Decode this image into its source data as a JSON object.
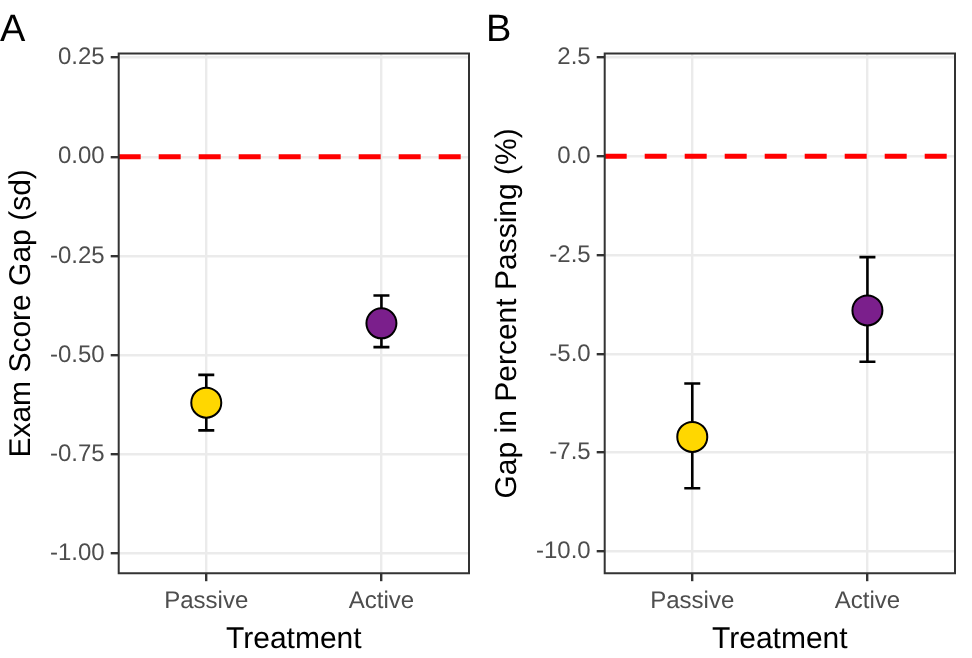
{
  "chart_data": [
    {
      "type": "scatter",
      "title": "A",
      "xlabel": "Treatment",
      "ylabel": "Exam Score Gap (sd)",
      "categories": [
        "Passive",
        "Active"
      ],
      "series": [
        {
          "values": [
            -0.62,
            -0.42
          ],
          "colors": [
            "#ffd700",
            "#7b1f8c"
          ],
          "errors": [
            [
              -0.69,
              -0.55
            ],
            [
              -0.48,
              -0.35
            ]
          ]
        }
      ],
      "ylim": [
        -1.05,
        0.26
      ],
      "yticks": [
        0.25,
        {
          "value": 0,
          "label": "0.00"
        },
        -0.25,
        {
          "value": -0.5,
          "label": "-0.50"
        },
        -0.75,
        {
          "value": -1,
          "label": "-1.00"
        }
      ],
      "ref_lines": [
        {
          "axis": "y",
          "value": 0,
          "color": "#ff0000",
          "line_style": "dashed"
        }
      ],
      "grid": true,
      "marker": "circle",
      "legend": false
    },
    {
      "type": "scatter",
      "title": "B",
      "xlabel": "Treatment",
      "ylabel": "Gap in Percent Passing (%)",
      "categories": [
        "Passive",
        "Active"
      ],
      "series": [
        {
          "values": [
            -7.1,
            -3.9
          ],
          "colors": [
            "#ffd700",
            "#7b1f8c"
          ],
          "errors": [
            [
              -8.4,
              -5.75
            ],
            [
              -5.2,
              -2.55
            ]
          ]
        }
      ],
      "ylim": [
        -10.55,
        2.6
      ],
      "yticks": [
        2.5,
        {
          "value": 0,
          "label": "0.0"
        },
        -2.5,
        {
          "value": -5,
          "label": "-5.0"
        },
        -7.5,
        {
          "value": -10,
          "label": "-10.0"
        }
      ],
      "ref_lines": [
        {
          "axis": "y",
          "value": 0,
          "color": "#ff0000",
          "line_style": "dashed"
        }
      ],
      "grid": true,
      "marker": "circle",
      "legend": false
    }
  ]
}
